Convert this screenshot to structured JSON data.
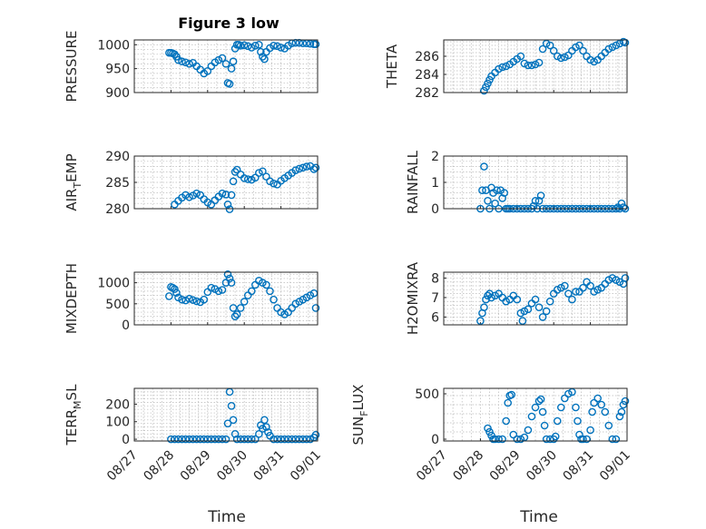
{
  "title": "Figure 3 low",
  "colors": {
    "marker": "#0072BD",
    "axes": "#262626",
    "grid": "#b8b8b8"
  },
  "chart_data": [
    {
      "type": "scatter",
      "ylabel": "PRESSURE",
      "xlim": [
        0,
        5
      ],
      "ylim": [
        900,
        1010
      ],
      "yticks": [
        900,
        950,
        1000
      ],
      "yticklabels": [
        "900",
        "950",
        "1000"
      ],
      "x": [
        0.95,
        1.0,
        1.05,
        1.1,
        1.15,
        1.2,
        1.3,
        1.4,
        1.5,
        1.6,
        1.7,
        1.8,
        1.9,
        2.0,
        2.1,
        2.2,
        2.3,
        2.4,
        2.5,
        2.55,
        2.6,
        2.65,
        2.7,
        2.75,
        2.8,
        2.85,
        2.9,
        3.0,
        3.1,
        3.2,
        3.3,
        3.4,
        3.45,
        3.5,
        3.55,
        3.6,
        3.7,
        3.8,
        3.9,
        4.0,
        4.1,
        4.2,
        4.3,
        4.4,
        4.5,
        4.6,
        4.7,
        4.8,
        4.9,
        4.95
      ],
      "y": [
        983,
        983,
        982,
        980,
        975,
        968,
        965,
        963,
        960,
        962,
        955,
        948,
        940,
        945,
        955,
        963,
        968,
        972,
        960,
        920,
        918,
        950,
        965,
        992,
        1000,
        1000,
        998,
        999,
        997,
        994,
        998,
        1000,
        985,
        975,
        970,
        985,
        993,
        998,
        997,
        994,
        992,
        998,
        1003,
        1004,
        1004,
        1003,
        1003,
        1002,
        1001,
        1001
      ]
    },
    {
      "type": "scatter",
      "ylabel": "THETA",
      "xlim": [
        0,
        5
      ],
      "ylim": [
        282,
        287.8
      ],
      "yticks": [
        282,
        284,
        286
      ],
      "yticklabels": [
        "282",
        "284",
        "286"
      ],
      "x": [
        1.1,
        1.15,
        1.2,
        1.25,
        1.3,
        1.4,
        1.5,
        1.6,
        1.7,
        1.8,
        1.9,
        2.0,
        2.1,
        2.2,
        2.3,
        2.4,
        2.5,
        2.6,
        2.7,
        2.8,
        2.9,
        3.0,
        3.1,
        3.2,
        3.3,
        3.4,
        3.5,
        3.6,
        3.7,
        3.8,
        3.9,
        4.0,
        4.1,
        4.2,
        4.3,
        4.4,
        4.5,
        4.6,
        4.7,
        4.8,
        4.9,
        4.95
      ],
      "y": [
        282.2,
        282.6,
        283.0,
        283.4,
        283.8,
        284.2,
        284.6,
        284.8,
        284.9,
        285.1,
        285.4,
        285.7,
        286.0,
        285.2,
        285.0,
        285.0,
        285.1,
        285.3,
        286.8,
        287.4,
        287.2,
        286.6,
        286.0,
        285.8,
        285.9,
        286.1,
        286.6,
        287.0,
        287.2,
        286.6,
        286.0,
        285.6,
        285.4,
        285.6,
        286.0,
        286.4,
        286.8,
        287.0,
        287.2,
        287.4,
        287.6,
        287.5
      ]
    },
    {
      "type": "scatter",
      "ylabel": "AIR_TEMP",
      "xlim": [
        0,
        5
      ],
      "ylim": [
        280,
        290
      ],
      "yticks": [
        280,
        285,
        290
      ],
      "yticklabels": [
        "280",
        "285",
        "290"
      ],
      "x": [
        1.1,
        1.2,
        1.3,
        1.4,
        1.5,
        1.6,
        1.7,
        1.8,
        1.9,
        2.0,
        2.1,
        2.2,
        2.3,
        2.4,
        2.5,
        2.55,
        2.6,
        2.65,
        2.7,
        2.75,
        2.8,
        2.9,
        3.0,
        3.1,
        3.2,
        3.3,
        3.4,
        3.5,
        3.6,
        3.7,
        3.8,
        3.9,
        4.0,
        4.1,
        4.2,
        4.3,
        4.4,
        4.5,
        4.6,
        4.7,
        4.8,
        4.9,
        4.95
      ],
      "y": [
        280.8,
        281.5,
        282.1,
        282.6,
        282.2,
        282.5,
        282.9,
        282.6,
        281.8,
        281.2,
        280.8,
        281.6,
        282.3,
        282.9,
        282.7,
        280.8,
        279.9,
        282.6,
        285.2,
        287.0,
        287.4,
        286.5,
        285.8,
        285.6,
        285.5,
        285.9,
        286.8,
        287.1,
        286.1,
        285.2,
        284.8,
        284.6,
        285.3,
        285.8,
        286.3,
        286.8,
        287.3,
        287.6,
        287.8,
        288.0,
        288.1,
        287.5,
        287.8
      ]
    },
    {
      "type": "scatter",
      "ylabel": "RAINFALL",
      "xlim": [
        0,
        5
      ],
      "ylim": [
        0,
        2
      ],
      "yticks": [
        0,
        1,
        2
      ],
      "yticklabels": [
        "0",
        "1",
        "2"
      ],
      "x": [
        1.0,
        1.05,
        1.1,
        1.15,
        1.2,
        1.25,
        1.3,
        1.35,
        1.4,
        1.45,
        1.5,
        1.55,
        1.6,
        1.65,
        1.7,
        1.75,
        1.8,
        1.9,
        2.0,
        2.1,
        2.2,
        2.3,
        2.4,
        2.45,
        2.5,
        2.55,
        2.6,
        2.65,
        2.7,
        2.8,
        2.9,
        3.0,
        3.1,
        3.2,
        3.3,
        3.4,
        3.5,
        3.6,
        3.7,
        3.8,
        3.9,
        4.0,
        4.1,
        4.2,
        4.3,
        4.4,
        4.5,
        4.6,
        4.7,
        4.75,
        4.8,
        4.85,
        4.9,
        4.95
      ],
      "y": [
        0.0,
        0.7,
        1.6,
        0.7,
        0.3,
        0.0,
        0.8,
        0.6,
        0.2,
        0.7,
        0.0,
        0.7,
        0.4,
        0.6,
        0.0,
        0.0,
        0.0,
        0.0,
        0.0,
        0.0,
        0.0,
        0.0,
        0.0,
        0.1,
        0.3,
        0.0,
        0.3,
        0.5,
        0.0,
        0.0,
        0.0,
        0.0,
        0.0,
        0.0,
        0.0,
        0.0,
        0.0,
        0.0,
        0.0,
        0.0,
        0.0,
        0.0,
        0.0,
        0.0,
        0.0,
        0.0,
        0.0,
        0.0,
        0.0,
        0.05,
        0.0,
        0.2,
        0.05,
        0.0
      ]
    },
    {
      "type": "scatter",
      "ylabel": "MIXDEPTH",
      "xlim": [
        0,
        5
      ],
      "ylim": [
        0,
        1250
      ],
      "yticks": [
        0,
        500,
        1000
      ],
      "yticklabels": [
        "0",
        "500",
        "1000"
      ],
      "x": [
        0.95,
        1.0,
        1.05,
        1.1,
        1.15,
        1.2,
        1.3,
        1.4,
        1.5,
        1.6,
        1.7,
        1.8,
        1.9,
        2.0,
        2.1,
        2.2,
        2.3,
        2.4,
        2.5,
        2.55,
        2.6,
        2.65,
        2.7,
        2.75,
        2.8,
        2.9,
        3.0,
        3.1,
        3.2,
        3.3,
        3.4,
        3.5,
        3.6,
        3.7,
        3.8,
        3.9,
        4.0,
        4.1,
        4.2,
        4.3,
        4.4,
        4.5,
        4.6,
        4.7,
        4.8,
        4.9,
        4.95
      ],
      "y": [
        680,
        900,
        880,
        850,
        760,
        650,
        600,
        580,
        620,
        590,
        560,
        540,
        600,
        780,
        880,
        850,
        800,
        830,
        1000,
        1200,
        1100,
        1000,
        400,
        200,
        250,
        400,
        550,
        700,
        800,
        950,
        1050,
        1000,
        950,
        800,
        600,
        400,
        300,
        250,
        300,
        400,
        500,
        550,
        600,
        650,
        700,
        750,
        400
      ]
    },
    {
      "type": "scatter",
      "ylabel": "H2OMIXRA",
      "xlim": [
        0,
        5
      ],
      "ylim": [
        5.6,
        8.3
      ],
      "yticks": [
        6,
        7,
        8
      ],
      "yticklabels": [
        "6",
        "7",
        "8"
      ],
      "x": [
        1.0,
        1.05,
        1.1,
        1.15,
        1.2,
        1.25,
        1.3,
        1.4,
        1.5,
        1.6,
        1.7,
        1.8,
        1.9,
        2.0,
        2.1,
        2.15,
        2.2,
        2.3,
        2.4,
        2.5,
        2.6,
        2.7,
        2.8,
        2.9,
        3.0,
        3.1,
        3.2,
        3.3,
        3.4,
        3.5,
        3.6,
        3.7,
        3.8,
        3.9,
        4.0,
        4.1,
        4.2,
        4.3,
        4.4,
        4.5,
        4.6,
        4.7,
        4.8,
        4.9,
        4.95
      ],
      "y": [
        5.8,
        6.2,
        6.5,
        6.9,
        7.1,
        7.2,
        7.0,
        7.1,
        7.2,
        7.0,
        6.8,
        6.9,
        7.1,
        6.9,
        6.2,
        5.8,
        6.3,
        6.4,
        6.7,
        6.9,
        6.5,
        6.0,
        6.3,
        6.8,
        7.2,
        7.4,
        7.5,
        7.6,
        7.2,
        6.9,
        7.3,
        7.3,
        7.5,
        7.8,
        7.6,
        7.3,
        7.4,
        7.5,
        7.7,
        7.9,
        8.0,
        7.9,
        7.8,
        7.7,
        8.0
      ]
    },
    {
      "type": "scatter",
      "ylabel": "TERR_MSL",
      "xlim": [
        0,
        5
      ],
      "ylim": [
        -10,
        290
      ],
      "yticks": [
        0,
        100,
        200
      ],
      "yticklabels": [
        "0",
        "100",
        "200"
      ],
      "x": [
        1.0,
        1.1,
        1.2,
        1.3,
        1.4,
        1.5,
        1.6,
        1.7,
        1.8,
        1.9,
        2.0,
        2.1,
        2.2,
        2.3,
        2.4,
        2.5,
        2.55,
        2.6,
        2.65,
        2.7,
        2.75,
        2.8,
        2.9,
        3.0,
        3.1,
        3.2,
        3.3,
        3.4,
        3.45,
        3.5,
        3.55,
        3.6,
        3.65,
        3.7,
        3.8,
        3.9,
        4.0,
        4.1,
        4.2,
        4.3,
        4.4,
        4.5,
        4.6,
        4.7,
        4.8,
        4.9,
        4.95
      ],
      "y": [
        0,
        0,
        0,
        0,
        0,
        0,
        0,
        0,
        0,
        0,
        0,
        0,
        0,
        0,
        0,
        0,
        90,
        270,
        190,
        110,
        30,
        0,
        0,
        0,
        0,
        0,
        0,
        30,
        80,
        60,
        110,
        70,
        40,
        20,
        0,
        0,
        0,
        0,
        0,
        0,
        0,
        0,
        0,
        0,
        0,
        10,
        25
      ]
    },
    {
      "type": "scatter",
      "ylabel": "SUN_FLUX",
      "xlim": [
        0,
        5
      ],
      "ylim": [
        -20,
        560
      ],
      "yticks": [
        0,
        500
      ],
      "yticklabels": [
        "0",
        "500"
      ],
      "x": [
        1.2,
        1.25,
        1.3,
        1.35,
        1.4,
        1.5,
        1.6,
        1.7,
        1.75,
        1.8,
        1.85,
        1.9,
        2.0,
        2.1,
        2.2,
        2.3,
        2.4,
        2.5,
        2.6,
        2.65,
        2.7,
        2.75,
        2.8,
        2.9,
        3.0,
        3.05,
        3.1,
        3.2,
        3.3,
        3.4,
        3.5,
        3.6,
        3.65,
        3.7,
        3.75,
        3.8,
        3.9,
        4.0,
        4.05,
        4.1,
        4.2,
        4.3,
        4.4,
        4.5,
        4.6,
        4.7,
        4.8,
        4.85,
        4.9,
        4.95
      ],
      "y": [
        120,
        80,
        40,
        0,
        0,
        0,
        0,
        200,
        400,
        480,
        490,
        50,
        0,
        0,
        20,
        100,
        250,
        350,
        420,
        440,
        300,
        150,
        0,
        0,
        0,
        30,
        200,
        350,
        450,
        500,
        520,
        350,
        200,
        50,
        0,
        0,
        0,
        100,
        300,
        400,
        450,
        380,
        300,
        150,
        0,
        0,
        250,
        300,
        380,
        420
      ]
    }
  ],
  "xticklabels": [
    "08/27",
    "08/28",
    "08/29",
    "08/30",
    "08/31",
    "09/01"
  ],
  "xlabel": "Time"
}
